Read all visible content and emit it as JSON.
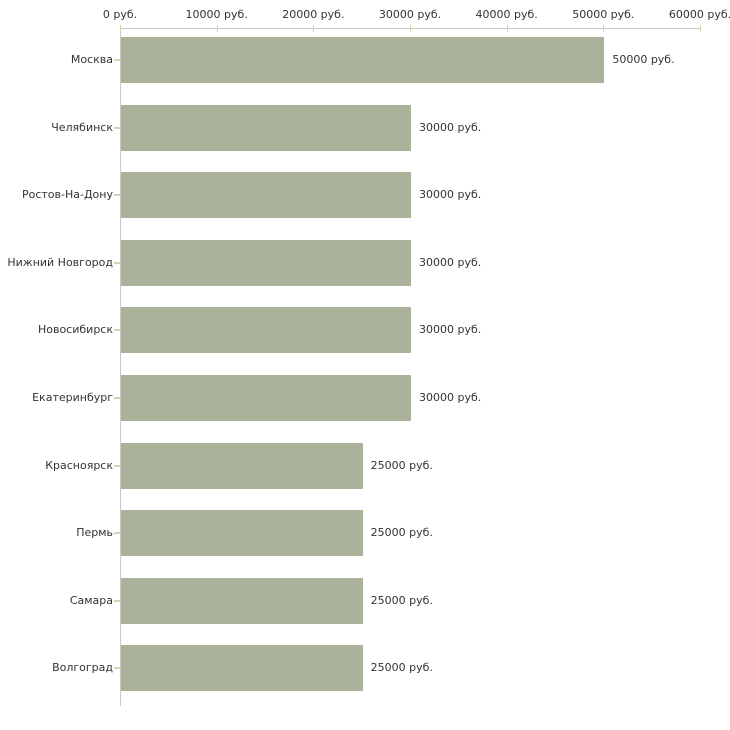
{
  "chart_data": {
    "type": "bar",
    "orientation": "horizontal",
    "title": "",
    "categories": [
      "Москва",
      "Челябинск",
      "Ростов-На-Дону",
      "Нижний Новгород",
      "Новосибирск",
      "Екатеринбург",
      "Красноярск",
      "Пермь",
      "Самара",
      "Волгоград"
    ],
    "values": [
      50000,
      30000,
      30000,
      30000,
      30000,
      30000,
      25000,
      25000,
      25000,
      25000
    ],
    "value_labels": [
      "50000 руб.",
      "30000 руб.",
      "30000 руб.",
      "30000 руб.",
      "30000 руб.",
      "30000 руб.",
      "25000 руб.",
      "25000 руб.",
      "25000 руб.",
      "25000 руб."
    ],
    "unit": "руб.",
    "x_axis": {
      "position": "top",
      "min": 0,
      "max": 60000,
      "tick_step": 10000,
      "ticks": [
        {
          "value": 0,
          "label": "0 руб."
        },
        {
          "value": 10000,
          "label": "10000 руб."
        },
        {
          "value": 20000,
          "label": "20000 руб."
        },
        {
          "value": 30000,
          "label": "30000 руб."
        },
        {
          "value": 40000,
          "label": "40000 руб."
        },
        {
          "value": 50000,
          "label": "50000 руб."
        },
        {
          "value": 60000,
          "label": "60000 руб."
        }
      ]
    },
    "grid": false,
    "legend": false,
    "colors": {
      "bar": "#abb29a",
      "axis_line": "#c9c9c9",
      "tick_mark": "#d8d5ae",
      "text": "#333333",
      "background": "#ffffff"
    }
  }
}
